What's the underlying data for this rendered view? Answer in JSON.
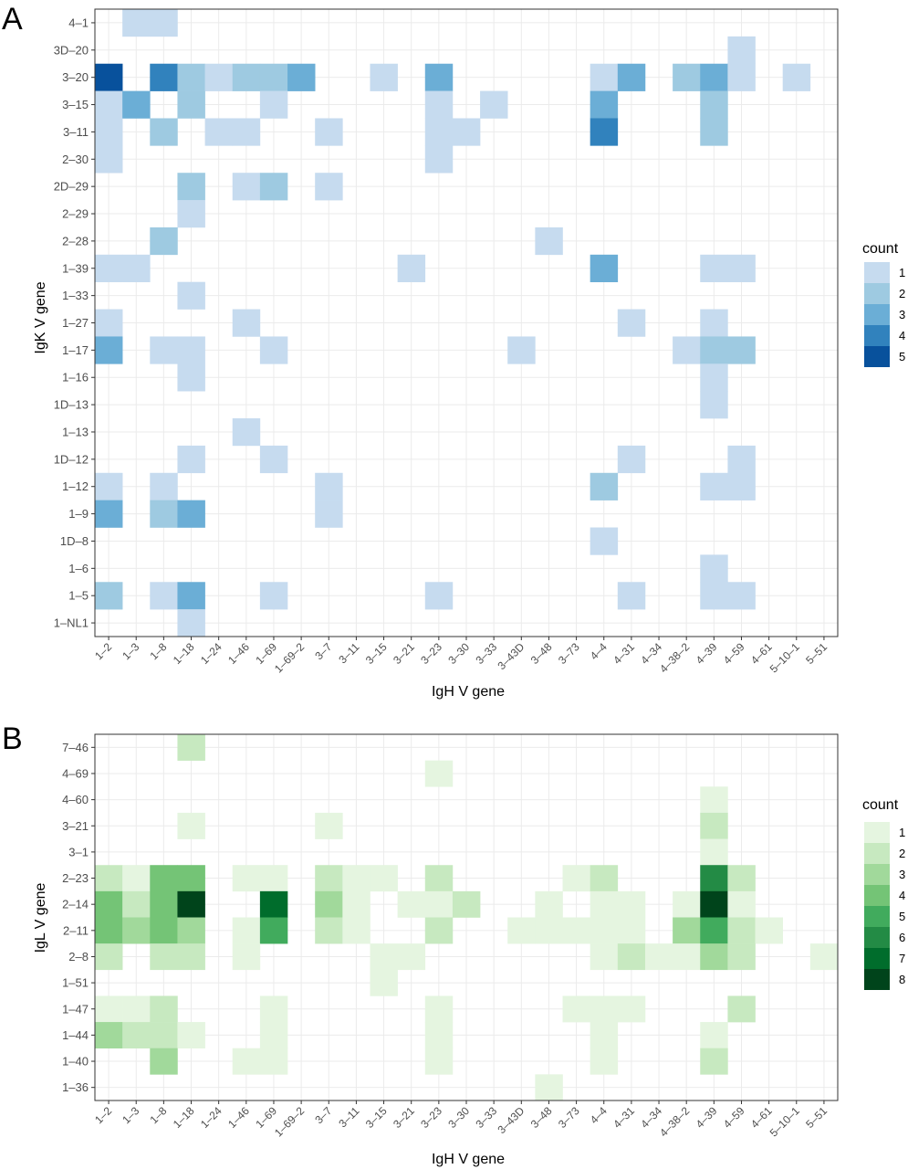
{
  "chart_data": [
    {
      "type": "heatmap",
      "panel_label": "A",
      "xlabel": "IgH V gene",
      "ylabel": "IgK V gene",
      "legend_title": "count",
      "x_categories": [
        "1-2",
        "1-3",
        "1-8",
        "1-18",
        "1-24",
        "1-46",
        "1-69",
        "1-69-2",
        "3-7",
        "3-11",
        "3-15",
        "3-21",
        "3-23",
        "3-30",
        "3-33",
        "3-43D",
        "3-48",
        "3-73",
        "4-4",
        "4-31",
        "4-34",
        "4-38-2",
        "4-39",
        "4-59",
        "4-61",
        "5-10-1",
        "5-51"
      ],
      "x_tick_labels": [
        "1–2",
        "1–3",
        "1–8",
        "1–18",
        "1–24",
        "1–46",
        "1–69",
        "1–69–2",
        "3–7",
        "3–11",
        "3–15",
        "3–21",
        "3–23",
        "3–30",
        "3–33",
        "3–43D",
        "3–48",
        "3–73",
        "4–4",
        "4–31",
        "4–34",
        "4–38–2",
        "4–39",
        "4–59",
        "4–61",
        "5–10–1",
        "5–51"
      ],
      "y_categories": [
        "4-1",
        "3D-20",
        "3-20",
        "3-15",
        "3-11",
        "2-30",
        "2D-29",
        "2-29",
        "2-28",
        "1-39",
        "1-33",
        "1-27",
        "1-17",
        "1-16",
        "1D-13",
        "1-13",
        "1D-12",
        "1-12",
        "1-9",
        "1D-8",
        "1-6",
        "1-5",
        "1-NL1"
      ],
      "y_tick_labels": [
        "4–1",
        "3D–20",
        "3–20",
        "3–15",
        "3–11",
        "2–30",
        "2D–29",
        "2–29",
        "2–28",
        "1–39",
        "1–33",
        "1–27",
        "1–17",
        "1–16",
        "1D–13",
        "1–13",
        "1D–12",
        "1–12",
        "1–9",
        "1D–8",
        "1–6",
        "1–5",
        "1–NL1"
      ],
      "legend_values": [
        1,
        2,
        3,
        4,
        5
      ],
      "legend_labels": [
        "1",
        "2",
        "3",
        "4",
        "5"
      ],
      "colors": [
        "#c6dbef",
        "#9ecae1",
        "#6baed6",
        "#3182bd",
        "#08519c"
      ],
      "cells": [
        [
          "1-3",
          "4-1",
          1
        ],
        [
          "1-8",
          "4-1",
          1
        ],
        [
          "4-59",
          "3D-20",
          1
        ],
        [
          "1-2",
          "3-20",
          5
        ],
        [
          "1-8",
          "3-20",
          4
        ],
        [
          "1-18",
          "3-20",
          2
        ],
        [
          "1-24",
          "3-20",
          1
        ],
        [
          "1-46",
          "3-20",
          2
        ],
        [
          "1-69",
          "3-20",
          2
        ],
        [
          "1-69-2",
          "3-20",
          3
        ],
        [
          "3-15",
          "3-20",
          1
        ],
        [
          "3-23",
          "3-20",
          3
        ],
        [
          "4-4",
          "3-20",
          1
        ],
        [
          "4-31",
          "3-20",
          3
        ],
        [
          "4-38-2",
          "3-20",
          2
        ],
        [
          "4-39",
          "3-20",
          3
        ],
        [
          "4-59",
          "3-20",
          1
        ],
        [
          "5-10-1",
          "3-20",
          1
        ],
        [
          "1-2",
          "3-15",
          1
        ],
        [
          "1-3",
          "3-15",
          3
        ],
        [
          "1-18",
          "3-15",
          2
        ],
        [
          "1-69",
          "3-15",
          1
        ],
        [
          "3-23",
          "3-15",
          1
        ],
        [
          "3-33",
          "3-15",
          1
        ],
        [
          "4-4",
          "3-15",
          3
        ],
        [
          "4-39",
          "3-15",
          2
        ],
        [
          "1-2",
          "3-11",
          1
        ],
        [
          "1-8",
          "3-11",
          2
        ],
        [
          "1-24",
          "3-11",
          1
        ],
        [
          "1-46",
          "3-11",
          1
        ],
        [
          "3-7",
          "3-11",
          1
        ],
        [
          "3-23",
          "3-11",
          1
        ],
        [
          "3-30",
          "3-11",
          1
        ],
        [
          "4-4",
          "3-11",
          4
        ],
        [
          "4-39",
          "3-11",
          2
        ],
        [
          "1-2",
          "2-30",
          1
        ],
        [
          "3-23",
          "2-30",
          1
        ],
        [
          "1-18",
          "2D-29",
          2
        ],
        [
          "1-46",
          "2D-29",
          1
        ],
        [
          "1-69",
          "2D-29",
          2
        ],
        [
          "3-7",
          "2D-29",
          1
        ],
        [
          "1-18",
          "2-29",
          1
        ],
        [
          "1-8",
          "2-28",
          2
        ],
        [
          "3-48",
          "2-28",
          1
        ],
        [
          "1-2",
          "1-39",
          1
        ],
        [
          "1-3",
          "1-39",
          1
        ],
        [
          "3-21",
          "1-39",
          1
        ],
        [
          "4-4",
          "1-39",
          3
        ],
        [
          "4-39",
          "1-39",
          1
        ],
        [
          "4-59",
          "1-39",
          1
        ],
        [
          "1-18",
          "1-33",
          1
        ],
        [
          "1-2",
          "1-27",
          1
        ],
        [
          "1-46",
          "1-27",
          1
        ],
        [
          "4-31",
          "1-27",
          1
        ],
        [
          "4-39",
          "1-27",
          1
        ],
        [
          "1-2",
          "1-17",
          3
        ],
        [
          "1-8",
          "1-17",
          1
        ],
        [
          "1-18",
          "1-17",
          1
        ],
        [
          "1-69",
          "1-17",
          1
        ],
        [
          "3-43D",
          "1-17",
          1
        ],
        [
          "4-38-2",
          "1-17",
          1
        ],
        [
          "4-39",
          "1-17",
          2
        ],
        [
          "4-59",
          "1-17",
          2
        ],
        [
          "1-18",
          "1-16",
          1
        ],
        [
          "4-39",
          "1-16",
          1
        ],
        [
          "4-39",
          "1D-13",
          1
        ],
        [
          "1-46",
          "1-13",
          1
        ],
        [
          "1-18",
          "1D-12",
          1
        ],
        [
          "1-69",
          "1D-12",
          1
        ],
        [
          "4-31",
          "1D-12",
          1
        ],
        [
          "4-59",
          "1D-12",
          1
        ],
        [
          "1-2",
          "1-12",
          1
        ],
        [
          "1-8",
          "1-12",
          1
        ],
        [
          "3-7",
          "1-12",
          1
        ],
        [
          "4-4",
          "1-12",
          2
        ],
        [
          "4-39",
          "1-12",
          1
        ],
        [
          "4-59",
          "1-12",
          1
        ],
        [
          "1-2",
          "1-9",
          3
        ],
        [
          "1-8",
          "1-9",
          2
        ],
        [
          "1-18",
          "1-9",
          3
        ],
        [
          "3-7",
          "1-9",
          1
        ],
        [
          "4-4",
          "1D-8",
          1
        ],
        [
          "4-39",
          "1-6",
          1
        ],
        [
          "1-2",
          "1-5",
          2
        ],
        [
          "1-8",
          "1-5",
          1
        ],
        [
          "1-18",
          "1-5",
          3
        ],
        [
          "1-69",
          "1-5",
          1
        ],
        [
          "3-23",
          "1-5",
          1
        ],
        [
          "4-31",
          "1-5",
          1
        ],
        [
          "4-39",
          "1-5",
          1
        ],
        [
          "4-59",
          "1-5",
          1
        ],
        [
          "1-18",
          "1-NL1",
          1
        ]
      ]
    },
    {
      "type": "heatmap",
      "panel_label": "B",
      "xlabel": "IgH V gene",
      "ylabel": "IgL V gene",
      "legend_title": "count",
      "x_categories": [
        "1-2",
        "1-3",
        "1-8",
        "1-18",
        "1-24",
        "1-46",
        "1-69",
        "1-69-2",
        "3-7",
        "3-11",
        "3-15",
        "3-21",
        "3-23",
        "3-30",
        "3-33",
        "3-43D",
        "3-48",
        "3-73",
        "4-4",
        "4-31",
        "4-34",
        "4-38-2",
        "4-39",
        "4-59",
        "4-61",
        "5-10-1",
        "5-51"
      ],
      "x_tick_labels": [
        "1–2",
        "1–3",
        "1–8",
        "1–18",
        "1–24",
        "1–46",
        "1–69",
        "1–69–2",
        "3–7",
        "3–11",
        "3–15",
        "3–21",
        "3–23",
        "3–30",
        "3–33",
        "3–43D",
        "3–48",
        "3–73",
        "4–4",
        "4–31",
        "4–34",
        "4–38–2",
        "4–39",
        "4–59",
        "4–61",
        "5–10–1",
        "5–51"
      ],
      "y_categories": [
        "7-46",
        "4-69",
        "4-60",
        "3-21",
        "3-1",
        "2-23",
        "2-14",
        "2-11",
        "2-8",
        "1-51",
        "1-47",
        "1-44",
        "1-40",
        "1-36"
      ],
      "y_tick_labels": [
        "7–46",
        "4–69",
        "4–60",
        "3–21",
        "3–1",
        "2–23",
        "2–14",
        "2–11",
        "2–8",
        "1–51",
        "1–47",
        "1–44",
        "1–40",
        "1–36"
      ],
      "legend_values": [
        1,
        2,
        3,
        4,
        5,
        6,
        7,
        8
      ],
      "legend_labels": [
        "1",
        "2",
        "3",
        "4",
        "5",
        "6",
        "7",
        "8"
      ],
      "colors": [
        "#e5f5e0",
        "#c7e9c0",
        "#a1d99b",
        "#74c476",
        "#41ab5d",
        "#238b45",
        "#006d2c",
        "#00441b"
      ],
      "cells": [
        [
          "1-18",
          "7-46",
          2
        ],
        [
          "3-23",
          "4-69",
          1
        ],
        [
          "4-39",
          "4-60",
          1
        ],
        [
          "1-18",
          "3-21",
          1
        ],
        [
          "3-7",
          "3-21",
          1
        ],
        [
          "4-39",
          "3-21",
          2
        ],
        [
          "4-39",
          "3-1",
          1
        ],
        [
          "1-2",
          "2-23",
          2
        ],
        [
          "1-3",
          "2-23",
          1
        ],
        [
          "1-8",
          "2-23",
          4
        ],
        [
          "1-18",
          "2-23",
          4
        ],
        [
          "1-46",
          "2-23",
          1
        ],
        [
          "1-69",
          "2-23",
          1
        ],
        [
          "3-7",
          "2-23",
          2
        ],
        [
          "3-11",
          "2-23",
          1
        ],
        [
          "3-15",
          "2-23",
          1
        ],
        [
          "3-23",
          "2-23",
          2
        ],
        [
          "3-73",
          "2-23",
          1
        ],
        [
          "4-4",
          "2-23",
          2
        ],
        [
          "4-39",
          "2-23",
          6
        ],
        [
          "4-59",
          "2-23",
          2
        ],
        [
          "1-2",
          "2-14",
          4
        ],
        [
          "1-3",
          "2-14",
          2
        ],
        [
          "1-8",
          "2-14",
          4
        ],
        [
          "1-18",
          "2-14",
          8
        ],
        [
          "1-69",
          "2-14",
          7
        ],
        [
          "3-7",
          "2-14",
          3
        ],
        [
          "3-11",
          "2-14",
          1
        ],
        [
          "3-21",
          "2-14",
          1
        ],
        [
          "3-23",
          "2-14",
          1
        ],
        [
          "3-30",
          "2-14",
          2
        ],
        [
          "3-48",
          "2-14",
          1
        ],
        [
          "4-4",
          "2-14",
          1
        ],
        [
          "4-31",
          "2-14",
          1
        ],
        [
          "4-38-2",
          "2-14",
          1
        ],
        [
          "4-39",
          "2-14",
          8
        ],
        [
          "4-59",
          "2-14",
          1
        ],
        [
          "1-2",
          "2-11",
          4
        ],
        [
          "1-3",
          "2-11",
          3
        ],
        [
          "1-8",
          "2-11",
          4
        ],
        [
          "1-18",
          "2-11",
          3
        ],
        [
          "1-46",
          "2-11",
          1
        ],
        [
          "1-69",
          "2-11",
          5
        ],
        [
          "3-7",
          "2-11",
          2
        ],
        [
          "3-11",
          "2-11",
          1
        ],
        [
          "3-23",
          "2-11",
          2
        ],
        [
          "3-43D",
          "2-11",
          1
        ],
        [
          "3-48",
          "2-11",
          1
        ],
        [
          "3-73",
          "2-11",
          1
        ],
        [
          "4-4",
          "2-11",
          1
        ],
        [
          "4-31",
          "2-11",
          1
        ],
        [
          "4-38-2",
          "2-11",
          3
        ],
        [
          "4-39",
          "2-11",
          5
        ],
        [
          "4-59",
          "2-11",
          2
        ],
        [
          "4-61",
          "2-11",
          1
        ],
        [
          "1-2",
          "2-8",
          2
        ],
        [
          "1-8",
          "2-8",
          2
        ],
        [
          "1-18",
          "2-8",
          2
        ],
        [
          "1-46",
          "2-8",
          1
        ],
        [
          "3-15",
          "2-8",
          1
        ],
        [
          "3-21",
          "2-8",
          1
        ],
        [
          "4-4",
          "2-8",
          1
        ],
        [
          "4-31",
          "2-8",
          2
        ],
        [
          "4-34",
          "2-8",
          1
        ],
        [
          "4-38-2",
          "2-8",
          1
        ],
        [
          "4-39",
          "2-8",
          3
        ],
        [
          "4-59",
          "2-8",
          2
        ],
        [
          "5-51",
          "2-8",
          1
        ],
        [
          "3-15",
          "1-51",
          1
        ],
        [
          "1-2",
          "1-47",
          1
        ],
        [
          "1-3",
          "1-47",
          1
        ],
        [
          "1-8",
          "1-47",
          2
        ],
        [
          "1-69",
          "1-47",
          1
        ],
        [
          "3-23",
          "1-47",
          1
        ],
        [
          "3-73",
          "1-47",
          1
        ],
        [
          "4-4",
          "1-47",
          1
        ],
        [
          "4-31",
          "1-47",
          1
        ],
        [
          "4-59",
          "1-47",
          2
        ],
        [
          "1-2",
          "1-44",
          3
        ],
        [
          "1-3",
          "1-44",
          2
        ],
        [
          "1-8",
          "1-44",
          2
        ],
        [
          "1-18",
          "1-44",
          1
        ],
        [
          "1-69",
          "1-44",
          1
        ],
        [
          "3-23",
          "1-44",
          1
        ],
        [
          "4-4",
          "1-44",
          1
        ],
        [
          "4-39",
          "1-44",
          1
        ],
        [
          "1-8",
          "1-40",
          3
        ],
        [
          "1-46",
          "1-40",
          1
        ],
        [
          "1-69",
          "1-40",
          1
        ],
        [
          "3-23",
          "1-40",
          1
        ],
        [
          "4-4",
          "1-40",
          1
        ],
        [
          "4-39",
          "1-40",
          2
        ],
        [
          "3-48",
          "1-36",
          1
        ]
      ]
    }
  ]
}
